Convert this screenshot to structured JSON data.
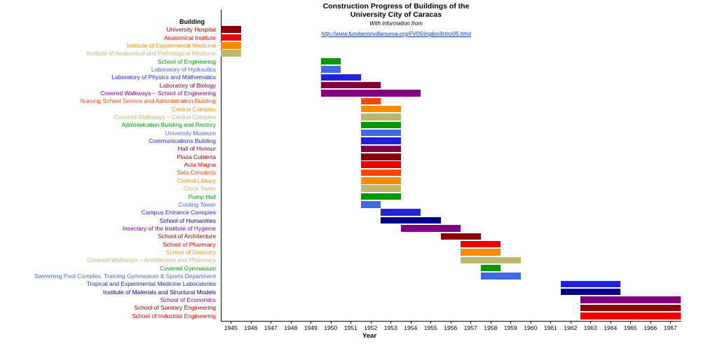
{
  "header": {
    "title_line1": "Construction Progress of Buildings of the",
    "title_line2": "University City of Caracas",
    "subtitle": "With information from",
    "source_link": "http://www.fundacionvillanueva.org/FV05/ingles/lintro05.html"
  },
  "axes": {
    "y_title": "Building",
    "x_title": "Year"
  },
  "chart_data": {
    "type": "bar",
    "subtype": "gantt-timeline",
    "title": "Construction Progress of Buildings of the University City of Caracas",
    "source_note": "With information from http://www.fundacionvillanueva.org/FV05/ingles/lintro05.html",
    "xlabel": "Year",
    "ylabel": "Building",
    "grid": false,
    "legend": false,
    "x_range": [
      1944.5,
      1967.5
    ],
    "x_ticks": [
      1945,
      1946,
      1947,
      1948,
      1949,
      1950,
      1951,
      1952,
      1953,
      1954,
      1955,
      1956,
      1957,
      1958,
      1959,
      1960,
      1961,
      1962,
      1963,
      1964,
      1965,
      1966,
      1967
    ],
    "rows": [
      {
        "label": "University Hospital",
        "start": 1945,
        "end": 1945,
        "color": "#8B0000"
      },
      {
        "label": "Anatomical Institute",
        "start": 1945,
        "end": 1945,
        "color": "#EE0000"
      },
      {
        "label": "Institute of Experimental Medicine",
        "start": 1945,
        "end": 1945,
        "color": "#FF8C00"
      },
      {
        "label": "Institute of Anatomical and Pathological Medicine",
        "start": 1945,
        "end": 1945,
        "color": "#BDB76B"
      },
      {
        "label": "School of Engineering",
        "start": 1950,
        "end": 1950,
        "color": "#009900"
      },
      {
        "label": "Laboratory of Hydraulics",
        "start": 1950,
        "end": 1950,
        "color": "#4169E1"
      },
      {
        "label": "Laboratory of Physics and Mathematics",
        "start": 1950,
        "end": 1951,
        "color": "#2222DD"
      },
      {
        "label": "Laboratory of Biology",
        "start": 1950,
        "end": 1952,
        "color": "#800040"
      },
      {
        "label": "Covered Walkways – School of Engineering",
        "start": 1950,
        "end": 1954,
        "color": "#800080"
      },
      {
        "label": "Nursing School Service and Administration Building",
        "start": 1952,
        "end": 1952,
        "color": "#FF4500"
      },
      {
        "label": "Central Complex",
        "start": 1952,
        "end": 1953,
        "color": "#FF8C00"
      },
      {
        "label": "Covered Walkways – Central Complex",
        "start": 1952,
        "end": 1953,
        "color": "#BDB76B"
      },
      {
        "label": "Administration Building and Rectory",
        "start": 1952,
        "end": 1953,
        "color": "#009900"
      },
      {
        "label": "University Museum",
        "start": 1952,
        "end": 1953,
        "color": "#4169E1"
      },
      {
        "label": "Communications Building",
        "start": 1952,
        "end": 1953,
        "color": "#2222DD"
      },
      {
        "label": "Hall of Honour",
        "start": 1952,
        "end": 1953,
        "color": "#800040"
      },
      {
        "label": "Plaza Cubierta",
        "start": 1952,
        "end": 1953,
        "color": "#8B0000"
      },
      {
        "label": "Aula Magna",
        "start": 1952,
        "end": 1953,
        "color": "#EE0000"
      },
      {
        "label": "Sala Concierto",
        "start": 1952,
        "end": 1953,
        "color": "#FF4500"
      },
      {
        "label": "Central Library",
        "start": 1952,
        "end": 1953,
        "color": "#FF8C00"
      },
      {
        "label": "Clock Tower",
        "start": 1952,
        "end": 1953,
        "color": "#BDB76B"
      },
      {
        "label": "Pump Hall",
        "start": 1952,
        "end": 1953,
        "color": "#009900"
      },
      {
        "label": "Cooling Tower",
        "start": 1952,
        "end": 1952,
        "color": "#4169E1"
      },
      {
        "label": "Campus Entrance Canopies",
        "start": 1953,
        "end": 1954,
        "color": "#2222DD"
      },
      {
        "label": "School of Humanities",
        "start": 1953,
        "end": 1955,
        "color": "#00008B"
      },
      {
        "label": "Insectary of the Institute of Hygiene",
        "start": 1954,
        "end": 1956,
        "color": "#800080"
      },
      {
        "label": "School of Architecture",
        "start": 1956,
        "end": 1957,
        "color": "#8B0000"
      },
      {
        "label": "School of Pharmacy",
        "start": 1957,
        "end": 1958,
        "color": "#EE0000"
      },
      {
        "label": "School of Dentistry",
        "start": 1957,
        "end": 1958,
        "color": "#FF8C00"
      },
      {
        "label": "Covered Walkways – Architecture and Pharmacy",
        "start": 1957,
        "end": 1959,
        "color": "#BDB76B"
      },
      {
        "label": "Covered Gymnasium",
        "start": 1958,
        "end": 1958,
        "color": "#009900"
      },
      {
        "label": "Swimming Pool Complex, Training Gymnasium & Sports Department",
        "start": 1958,
        "end": 1959,
        "color": "#4169E1"
      },
      {
        "label": "Tropical and Experimental Medicine Laboratories",
        "start": 1962,
        "end": 1964,
        "color": "#2222DD"
      },
      {
        "label": "Institute of Materials and Structural Models",
        "start": 1962,
        "end": 1964,
        "color": "#00008B"
      },
      {
        "label": "School of Economics",
        "start": 1963,
        "end": 1967,
        "color": "#800080"
      },
      {
        "label": "School of Sanitary Engineering",
        "start": 1963,
        "end": 1967,
        "color": "#8B0000"
      },
      {
        "label": "School of Industrial Engineering",
        "start": 1963,
        "end": 1967,
        "color": "#EE0000"
      }
    ]
  }
}
